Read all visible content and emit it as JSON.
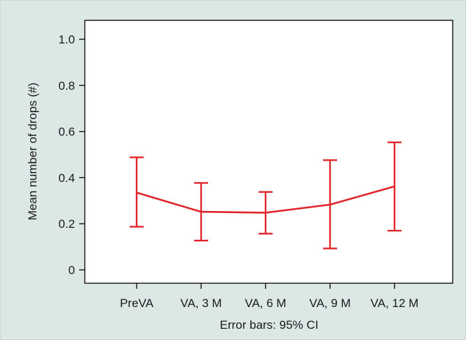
{
  "colors": {
    "background": "#dce8e6",
    "plot_background": "#ffffff",
    "series_line": "#e0262b",
    "axis": "#000000"
  },
  "chart_data": {
    "type": "line",
    "categories": [
      "PreVA",
      "VA, 3 M",
      "VA, 6 M",
      "VA, 9 M",
      "VA, 12 M"
    ],
    "series": [
      {
        "values": [
          0.335,
          0.252,
          0.248,
          0.283,
          0.362
        ],
        "ci_low": [
          0.187,
          0.127,
          0.157,
          0.093,
          0.17
        ],
        "ci_high": [
          0.488,
          0.377,
          0.338,
          0.476,
          0.553
        ]
      }
    ],
    "ylabel": "Mean number of drops (#)",
    "xlabel": "Error bars: 95% CI",
    "ylim": [
      0,
      1.0
    ],
    "yticks": [
      0,
      0.2,
      0.4,
      0.6,
      0.8,
      1.0
    ],
    "ytick_labels": [
      "0",
      "0.2",
      "0.4",
      "0.6",
      "0.8",
      "1.0"
    ],
    "grid": false,
    "legend": "none"
  }
}
